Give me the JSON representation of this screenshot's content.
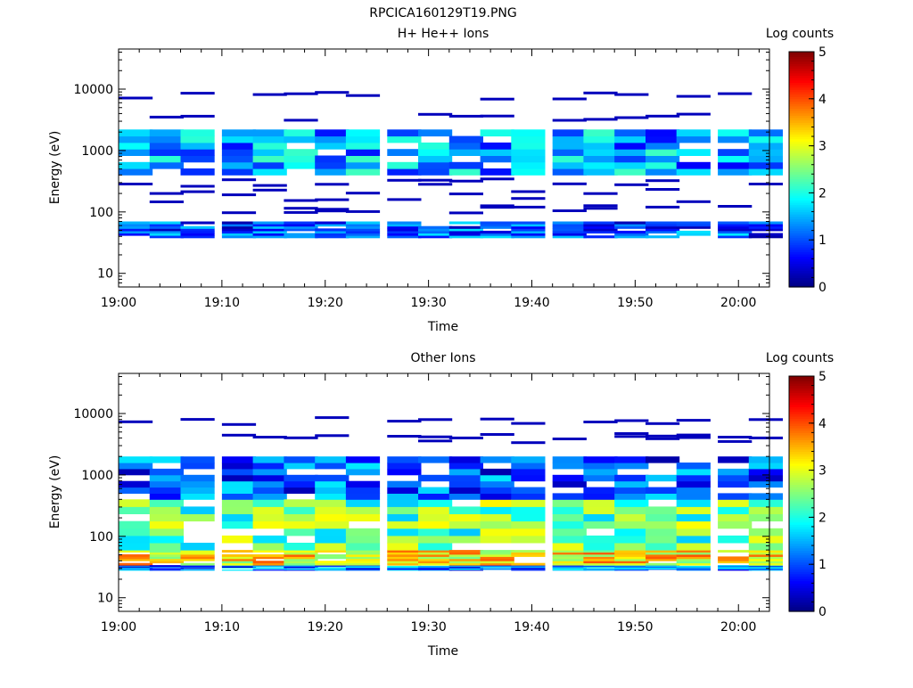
{
  "figure": {
    "title": "RPCICA160129T19.PNG"
  },
  "colormap": {
    "stops": [
      "#00007f",
      "#0000ff",
      "#007fff",
      "#00ffff",
      "#7fff7f",
      "#ffff00",
      "#ff7f00",
      "#ff0000",
      "#7f0000"
    ],
    "label": "Log counts",
    "range": [
      0,
      5
    ],
    "ticks": [
      "0",
      "1",
      "2",
      "3",
      "4",
      "5"
    ]
  },
  "chart_data": [
    {
      "type": "heatmap",
      "title": "H+ He++ Ions",
      "xlabel": "Time",
      "ylabel": "Energy (eV)",
      "yscale": "log",
      "ylim": [
        6,
        45000
      ],
      "xlim": [
        "19:00",
        "20:03"
      ],
      "x_ticks": [
        "19:00",
        "19:10",
        "19:20",
        "19:30",
        "19:40",
        "19:50",
        "20:00"
      ],
      "y_ticks": [
        "10",
        "100",
        "1000",
        "10000"
      ],
      "colorbar": {
        "label": "Log counts",
        "range": [
          0,
          5
        ]
      },
      "time_bins": [
        "19:00",
        "19:03",
        "19:06",
        "19:10",
        "19:13",
        "19:16",
        "19:19",
        "19:22",
        "19:26",
        "19:29",
        "19:32",
        "19:35",
        "19:38",
        "19:42",
        "19:45",
        "19:48",
        "19:51",
        "19:54",
        "19:58",
        "20:01"
      ],
      "clusters": [
        {
          "e_low": 38,
          "e_high": 70,
          "level": 1.0
        },
        {
          "e_low": 400,
          "e_high": 2200,
          "level": 1.4
        }
      ],
      "sparse_lines_eV": [
        110,
        130,
        180,
        250,
        300,
        3500,
        8000
      ]
    },
    {
      "type": "heatmap",
      "title": "Other Ions",
      "xlabel": "Time",
      "ylabel": "Energy (eV)",
      "yscale": "log",
      "ylim": [
        6,
        45000
      ],
      "xlim": [
        "19:00",
        "20:03"
      ],
      "x_ticks": [
        "19:00",
        "19:10",
        "19:20",
        "19:30",
        "19:40",
        "19:50",
        "20:00"
      ],
      "y_ticks": [
        "10",
        "100",
        "1000",
        "10000"
      ],
      "colorbar": {
        "label": "Log counts",
        "range": [
          0,
          5
        ]
      },
      "time_bins": [
        "19:00",
        "19:03",
        "19:06",
        "19:10",
        "19:13",
        "19:16",
        "19:19",
        "19:22",
        "19:26",
        "19:29",
        "19:32",
        "19:35",
        "19:38",
        "19:42",
        "19:45",
        "19:48",
        "19:51",
        "19:54",
        "19:58",
        "20:01"
      ],
      "clusters": [
        {
          "e_low": 28,
          "e_high": 34,
          "level": 1.2
        },
        {
          "e_low": 34,
          "e_high": 60,
          "level": 3.2
        },
        {
          "e_low": 60,
          "e_high": 400,
          "level": 2.4
        },
        {
          "e_low": 400,
          "e_high": 2000,
          "level": 1.0
        }
      ],
      "sparse_lines_eV": [
        4300,
        3800,
        7500
      ]
    }
  ]
}
